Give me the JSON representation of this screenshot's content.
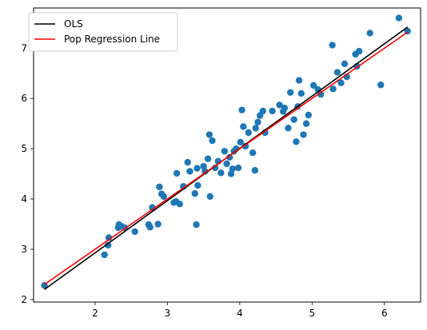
{
  "chart_data": {
    "type": "scatter",
    "xlim": [
      1.15,
      6.5
    ],
    "ylim": [
      1.95,
      7.8
    ],
    "x_ticks": [
      2,
      3,
      4,
      5,
      6
    ],
    "y_ticks": [
      2,
      3,
      4,
      5,
      6,
      7
    ],
    "grid": false,
    "legend_position": "top-left",
    "colors": {
      "points": "#1f77b4",
      "ols": "#000000",
      "population": "#ff0000"
    },
    "points": {
      "x": [
        1.3,
        2.13,
        2.18,
        2.19,
        2.32,
        2.33,
        2.36,
        2.41,
        2.55,
        2.74,
        2.76,
        2.79,
        2.87,
        2.89,
        2.92,
        2.95,
        3.09,
        3.12,
        3.13,
        3.17,
        3.22,
        3.28,
        3.31,
        3.38,
        3.4,
        3.41,
        3.42,
        3.5,
        3.52,
        3.56,
        3.58,
        3.59,
        3.62,
        3.66,
        3.7,
        3.74,
        3.79,
        3.82,
        3.86,
        3.88,
        3.9,
        3.92,
        3.95,
        3.98,
        4.01,
        4.03,
        4.05,
        4.08,
        4.12,
        4.18,
        4.21,
        4.22,
        4.25,
        4.28,
        4.32,
        4.35,
        4.45,
        4.55,
        4.6,
        4.62,
        4.67,
        4.7,
        4.75,
        4.78,
        4.8,
        4.82,
        4.85,
        4.88,
        4.92,
        4.95,
        5.02,
        5.08,
        5.12,
        5.28,
        5.29,
        5.35,
        5.4,
        5.45,
        5.48,
        5.6,
        5.62,
        5.65,
        5.8,
        5.95,
        6.2,
        6.32
      ],
      "y": [
        2.28,
        2.89,
        3.08,
        3.23,
        3.43,
        3.49,
        3.46,
        3.43,
        3.35,
        3.49,
        3.44,
        3.83,
        3.5,
        4.24,
        4.1,
        4.05,
        3.93,
        3.95,
        4.51,
        3.9,
        4.25,
        4.73,
        4.55,
        4.11,
        3.49,
        4.61,
        4.27,
        4.65,
        4.55,
        4.8,
        5.28,
        4.05,
        5.16,
        4.62,
        4.75,
        4.52,
        4.95,
        4.7,
        4.83,
        4.5,
        4.6,
        4.95,
        5.0,
        4.62,
        5.13,
        5.77,
        5.44,
        5.05,
        5.32,
        4.92,
        4.57,
        5.41,
        5.53,
        5.66,
        5.75,
        5.32,
        5.75,
        5.87,
        5.74,
        5.81,
        5.41,
        6.12,
        5.58,
        5.14,
        5.84,
        6.36,
        6.1,
        5.28,
        5.5,
        5.67,
        6.26,
        6.18,
        6.08,
        7.06,
        6.19,
        6.52,
        6.31,
        6.69,
        6.43,
        6.88,
        6.64,
        6.94,
        7.3,
        6.27,
        7.6,
        7.34
      ]
    },
    "series": [
      {
        "name": "OLS",
        "x": [
          1.3,
          6.32
        ],
        "y": [
          2.2,
          7.42
        ]
      },
      {
        "name": "Pop Regression Line",
        "x": [
          1.3,
          6.32
        ],
        "y": [
          2.3,
          7.32
        ]
      }
    ]
  }
}
